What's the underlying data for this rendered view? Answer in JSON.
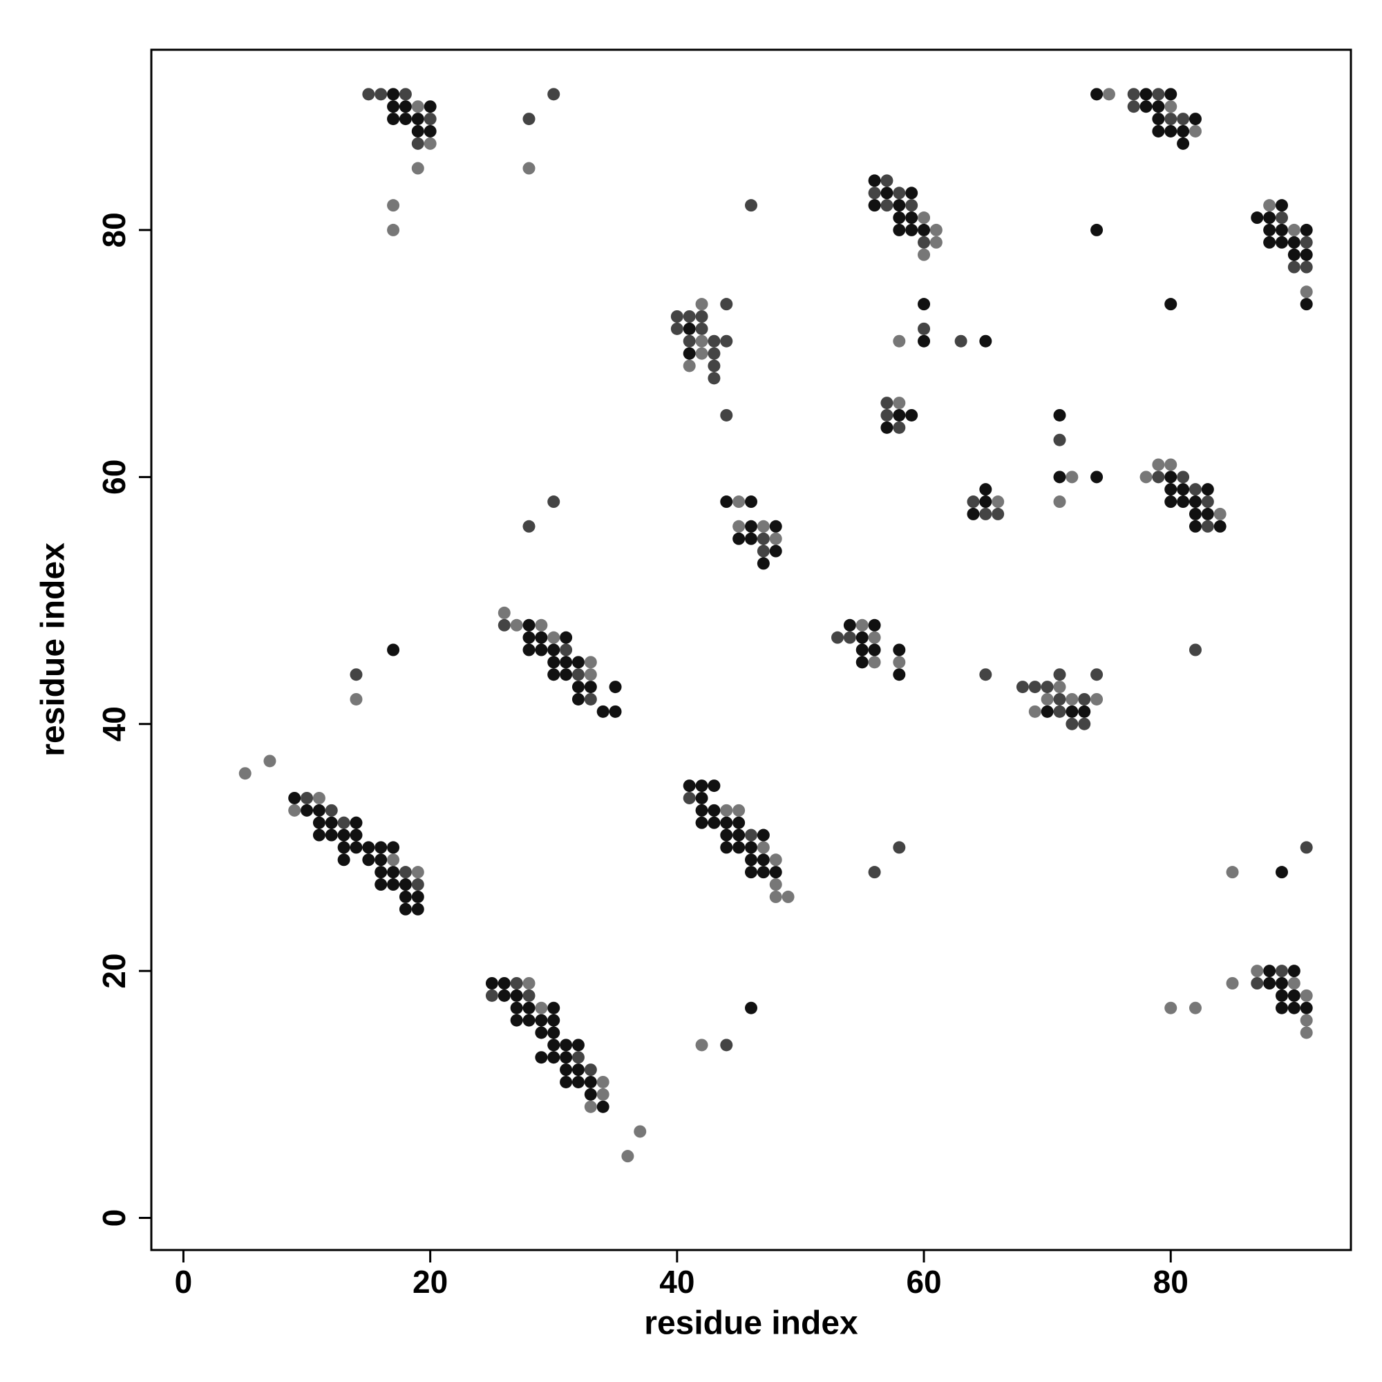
{
  "chart_data": {
    "type": "scatter",
    "x_label": "residue index",
    "y_label": "residue index",
    "xlim": [
      -2.6,
      94.6
    ],
    "ylim": [
      -2.6,
      94.6
    ],
    "xticks": [
      0,
      20,
      40,
      60,
      80
    ],
    "yticks": [
      0,
      20,
      40,
      60,
      80
    ],
    "grid": false,
    "series": [
      {
        "color": "#111111",
        "x": [
          17,
          17,
          18,
          20,
          17,
          18,
          19,
          19,
          20,
          56,
          57,
          59,
          56,
          58,
          58,
          59,
          58,
          59,
          60,
          74,
          78,
          80,
          78,
          79,
          79,
          82,
          79,
          80,
          81,
          81,
          74,
          89,
          87,
          88,
          88,
          89,
          91,
          88,
          89,
          90,
          90,
          91,
          91,
          80,
          41,
          41,
          60,
          60,
          65,
          58,
          59,
          57,
          71,
          71,
          74,
          65,
          65,
          64,
          80,
          80,
          81,
          83,
          80,
          81,
          82,
          82,
          83,
          82,
          84,
          44,
          46,
          46,
          48,
          45,
          46,
          48,
          47,
          28,
          28,
          29,
          31,
          28,
          29,
          30,
          30,
          31,
          32,
          30,
          31,
          32,
          33,
          35,
          32,
          34,
          35,
          17,
          54,
          56,
          55,
          55,
          56,
          58,
          55,
          58,
          70,
          72,
          73,
          9,
          10,
          11,
          11,
          12,
          14,
          11,
          12,
          13,
          14,
          13,
          14,
          15,
          16,
          17,
          13,
          15,
          16,
          16,
          17,
          16,
          17,
          18,
          18,
          19,
          18,
          19,
          41,
          42,
          43,
          42,
          42,
          43,
          42,
          43,
          44,
          45,
          44,
          45,
          47,
          44,
          45,
          46,
          46,
          47,
          46,
          47,
          48,
          89,
          25,
          26,
          26,
          27,
          27,
          28,
          30,
          27,
          28,
          29,
          30,
          29,
          30,
          30,
          31,
          32,
          29,
          30,
          31,
          31,
          32,
          31,
          32,
          33,
          33,
          34,
          46,
          88,
          90,
          88,
          89,
          89,
          90,
          89,
          90,
          91
        ],
        "values": [
          91,
          90,
          90,
          90,
          89,
          89,
          89,
          88,
          88,
          84,
          83,
          83,
          82,
          82,
          81,
          81,
          80,
          80,
          80,
          91,
          91,
          91,
          90,
          90,
          89,
          89,
          88,
          88,
          88,
          87,
          80,
          82,
          81,
          81,
          80,
          80,
          80,
          79,
          79,
          79,
          78,
          78,
          74,
          74,
          72,
          70,
          74,
          71,
          71,
          65,
          65,
          64,
          65,
          60,
          60,
          59,
          58,
          57,
          60,
          59,
          59,
          59,
          58,
          58,
          58,
          57,
          57,
          56,
          56,
          58,
          58,
          56,
          56,
          55,
          55,
          54,
          53,
          48,
          47,
          47,
          47,
          46,
          46,
          46,
          45,
          45,
          45,
          44,
          44,
          43,
          43,
          43,
          42,
          41,
          41,
          46,
          48,
          48,
          47,
          46,
          46,
          46,
          45,
          44,
          41,
          41,
          41,
          34,
          33,
          33,
          32,
          32,
          32,
          31,
          31,
          31,
          31,
          30,
          30,
          30,
          30,
          30,
          29,
          29,
          29,
          28,
          28,
          27,
          27,
          27,
          26,
          26,
          25,
          25,
          35,
          35,
          35,
          34,
          33,
          33,
          32,
          32,
          32,
          32,
          31,
          31,
          31,
          30,
          30,
          30,
          29,
          29,
          28,
          28,
          28,
          28,
          19,
          19,
          18,
          18,
          17,
          17,
          17,
          16,
          16,
          16,
          16,
          15,
          15,
          14,
          14,
          14,
          13,
          13,
          13,
          12,
          12,
          11,
          11,
          11,
          10,
          9,
          17,
          20,
          20,
          19,
          19,
          18,
          18,
          17,
          17,
          17
        ]
      },
      {
        "color": "#444444",
        "x": [
          15,
          16,
          18,
          20,
          19,
          28,
          30,
          57,
          56,
          58,
          57,
          59,
          60,
          46,
          77,
          79,
          77,
          80,
          81,
          89,
          91,
          90,
          91,
          44,
          40,
          41,
          42,
          40,
          42,
          41,
          43,
          44,
          43,
          43,
          43,
          44,
          60,
          63,
          57,
          57,
          58,
          71,
          64,
          65,
          66,
          79,
          81,
          82,
          83,
          83,
          47,
          47,
          28,
          30,
          26,
          31,
          32,
          33,
          14,
          53,
          54,
          65,
          82,
          71,
          74,
          68,
          69,
          70,
          71,
          73,
          71,
          72,
          73,
          10,
          12,
          13,
          18,
          19,
          41,
          46,
          56,
          58,
          91,
          27,
          25,
          28,
          32,
          33,
          44,
          89,
          87
        ],
        "values": [
          91,
          91,
          91,
          89,
          87,
          89,
          91,
          84,
          83,
          83,
          82,
          82,
          79,
          82,
          91,
          91,
          90,
          89,
          89,
          81,
          79,
          77,
          77,
          74,
          73,
          73,
          73,
          72,
          72,
          71,
          71,
          71,
          70,
          69,
          68,
          65,
          72,
          71,
          66,
          65,
          64,
          63,
          58,
          57,
          57,
          60,
          60,
          59,
          58,
          56,
          55,
          54,
          56,
          58,
          48,
          46,
          44,
          42,
          44,
          47,
          47,
          44,
          46,
          44,
          44,
          43,
          43,
          43,
          42,
          42,
          41,
          40,
          40,
          34,
          33,
          32,
          28,
          27,
          34,
          31,
          28,
          30,
          30,
          19,
          18,
          18,
          13,
          12,
          14,
          20,
          19
        ]
      },
      {
        "color": "#777777",
        "x": [
          19,
          20,
          19,
          17,
          17,
          28,
          60,
          61,
          61,
          60,
          75,
          80,
          82,
          88,
          90,
          91,
          42,
          42,
          42,
          41,
          58,
          58,
          72,
          71,
          66,
          79,
          80,
          78,
          84,
          45,
          45,
          47,
          48,
          26,
          27,
          29,
          30,
          33,
          33,
          14,
          55,
          56,
          56,
          58,
          71,
          70,
          72,
          74,
          69,
          5,
          7,
          11,
          9,
          17,
          19,
          44,
          45,
          47,
          48,
          48,
          48,
          49,
          85,
          28,
          29,
          34,
          34,
          33,
          37,
          36,
          42,
          87,
          85,
          90,
          91,
          91,
          91,
          80,
          82
        ],
        "values": [
          90,
          87,
          85,
          82,
          80,
          85,
          81,
          80,
          79,
          78,
          91,
          90,
          88,
          82,
          80,
          75,
          74,
          71,
          70,
          69,
          71,
          66,
          60,
          58,
          58,
          61,
          61,
          60,
          57,
          58,
          56,
          56,
          55,
          49,
          48,
          48,
          47,
          45,
          44,
          42,
          48,
          47,
          45,
          45,
          43,
          42,
          42,
          42,
          41,
          36,
          37,
          34,
          33,
          29,
          28,
          33,
          33,
          30,
          29,
          27,
          26,
          26,
          28,
          19,
          17,
          11,
          10,
          9,
          7,
          5,
          14,
          20,
          19,
          19,
          18,
          16,
          15,
          17,
          17
        ]
      }
    ]
  }
}
